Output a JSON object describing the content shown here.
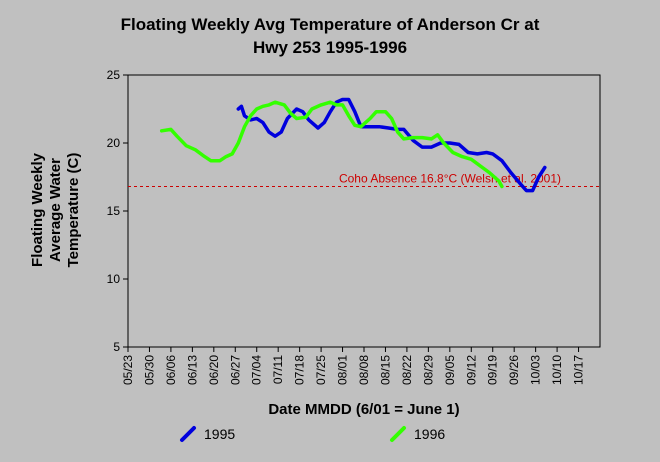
{
  "chart_data": {
    "type": "line",
    "title_lines": [
      "Floating Weekly Avg Temperature of Anderson Cr at",
      "Hwy 253 1995-1996"
    ],
    "xlabel": "Date MMDD (6/01 = June 1)",
    "ylabel_lines": [
      "Floating Weekly",
      "Average Water",
      "Temperature (C)"
    ],
    "ylim": [
      5,
      25
    ],
    "yticks": [
      5,
      10,
      15,
      20,
      25
    ],
    "xticks": [
      "05/23",
      "05/30",
      "06/06",
      "06/13",
      "06/20",
      "06/27",
      "07/04",
      "07/11",
      "07/18",
      "07/25",
      "08/01",
      "08/08",
      "08/15",
      "08/22",
      "08/29",
      "09/05",
      "09/12",
      "09/19",
      "09/26",
      "10/03",
      "10/10",
      "10/17"
    ],
    "grid": false,
    "legend_position": "bottom",
    "threshold": {
      "value": 16.8,
      "label": "Coho Absence 16.8°C (Welsh et al. 2001)",
      "color": "#cc0000"
    },
    "series": [
      {
        "name": "1995",
        "color": "#0000dd",
        "points": [
          [
            "06/28",
            22.5
          ],
          [
            "06/29",
            22.7
          ],
          [
            "06/30",
            22.0
          ],
          [
            "07/02",
            21.7
          ],
          [
            "07/04",
            21.8
          ],
          [
            "07/06",
            21.5
          ],
          [
            "07/08",
            20.8
          ],
          [
            "07/10",
            20.5
          ],
          [
            "07/12",
            20.8
          ],
          [
            "07/14",
            21.8
          ],
          [
            "07/17",
            22.5
          ],
          [
            "07/19",
            22.3
          ],
          [
            "07/21",
            21.7
          ],
          [
            "07/24",
            21.1
          ],
          [
            "07/26",
            21.5
          ],
          [
            "07/28",
            22.3
          ],
          [
            "07/30",
            23.0
          ],
          [
            "08/01",
            23.2
          ],
          [
            "08/03",
            23.2
          ],
          [
            "08/05",
            22.3
          ],
          [
            "08/07",
            21.2
          ],
          [
            "08/10",
            21.2
          ],
          [
            "08/13",
            21.2
          ],
          [
            "08/16",
            21.1
          ],
          [
            "08/19",
            21.0
          ],
          [
            "08/21",
            21.0
          ],
          [
            "08/24",
            20.2
          ],
          [
            "08/27",
            19.7
          ],
          [
            "08/30",
            19.7
          ],
          [
            "09/02",
            20.0
          ],
          [
            "09/05",
            20.0
          ],
          [
            "09/08",
            19.9
          ],
          [
            "09/11",
            19.3
          ],
          [
            "09/14",
            19.2
          ],
          [
            "09/17",
            19.3
          ],
          [
            "09/19",
            19.2
          ],
          [
            "09/22",
            18.7
          ],
          [
            "09/25",
            17.8
          ],
          [
            "09/28",
            17.0
          ],
          [
            "09/30",
            16.5
          ],
          [
            "10/02",
            16.5
          ],
          [
            "10/04",
            17.5
          ],
          [
            "10/06",
            18.2
          ]
        ]
      },
      {
        "name": "1996",
        "color": "#33ff00",
        "points": [
          [
            "06/03",
            20.9
          ],
          [
            "06/06",
            21.0
          ],
          [
            "06/08",
            20.5
          ],
          [
            "06/11",
            19.8
          ],
          [
            "06/14",
            19.5
          ],
          [
            "06/17",
            19.0
          ],
          [
            "06/19",
            18.7
          ],
          [
            "06/22",
            18.7
          ],
          [
            "06/24",
            19.0
          ],
          [
            "06/26",
            19.2
          ],
          [
            "06/28",
            20.0
          ],
          [
            "06/30",
            21.2
          ],
          [
            "07/02",
            22.0
          ],
          [
            "07/04",
            22.5
          ],
          [
            "07/06",
            22.7
          ],
          [
            "07/08",
            22.8
          ],
          [
            "07/10",
            23.0
          ],
          [
            "07/13",
            22.8
          ],
          [
            "07/15",
            22.2
          ],
          [
            "07/17",
            21.8
          ],
          [
            "07/20",
            21.9
          ],
          [
            "07/22",
            22.5
          ],
          [
            "07/25",
            22.8
          ],
          [
            "07/28",
            23.0
          ],
          [
            "07/30",
            22.8
          ],
          [
            "08/01",
            22.8
          ],
          [
            "08/03",
            22.0
          ],
          [
            "08/05",
            21.3
          ],
          [
            "08/07",
            21.2
          ],
          [
            "08/10",
            21.8
          ],
          [
            "08/12",
            22.3
          ],
          [
            "08/15",
            22.3
          ],
          [
            "08/17",
            21.8
          ],
          [
            "08/19",
            20.8
          ],
          [
            "08/21",
            20.3
          ],
          [
            "08/24",
            20.4
          ],
          [
            "08/27",
            20.4
          ],
          [
            "08/30",
            20.3
          ],
          [
            "09/01",
            20.6
          ],
          [
            "09/03",
            20.0
          ],
          [
            "09/06",
            19.3
          ],
          [
            "09/09",
            19.0
          ],
          [
            "09/12",
            18.8
          ],
          [
            "09/15",
            18.3
          ],
          [
            "09/18",
            17.8
          ],
          [
            "09/21",
            17.2
          ],
          [
            "09/22",
            16.8
          ]
        ]
      }
    ]
  }
}
